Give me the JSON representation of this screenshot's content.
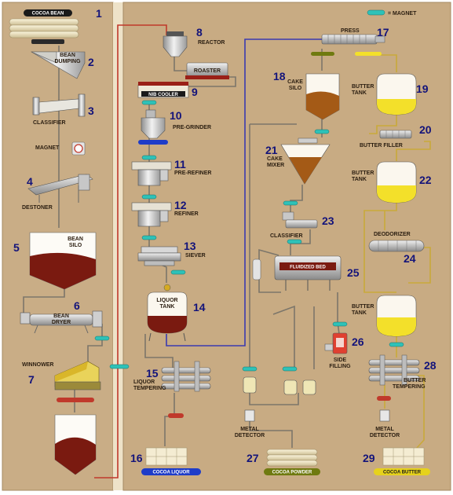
{
  "legend": {
    "magnet": "= MAGNET"
  },
  "numbers": [
    "1",
    "2",
    "3",
    "4",
    "5",
    "6",
    "7",
    "8",
    "9",
    "10",
    "11",
    "12",
    "13",
    "14",
    "15",
    "16",
    "17",
    "18",
    "19",
    "20",
    "21",
    "22",
    "23",
    "24",
    "25",
    "26",
    "27",
    "28",
    "29"
  ],
  "labels": {
    "cocoa_bean": "COCOA BEAN",
    "bean_dumping_1": "BEAN",
    "bean_dumping_2": "DUMPING",
    "classifier_a": "CLASSIFIER",
    "magnet": "MAGNET",
    "destoner": "DESTONER",
    "bean_silo_1": "BEAN",
    "bean_silo_2": "SILO",
    "bean_dryer_1": "BEAN",
    "bean_dryer_2": "DRYER",
    "winnower": "WINNOWER",
    "reactor": "REACTOR",
    "roaster": "ROASTER",
    "nib_cooler": "NIB COOLER",
    "pre_grinder": "PRE-GRINDER",
    "pre_refiner": "PRE-REFINER",
    "refiner": "REFINER",
    "siever": "SIEVER",
    "liquor_tank_1": "LIQUOR",
    "liquor_tank_2": "TANK",
    "liquor_tempering_1": "LIQUOR",
    "liquor_tempering_2": "TEMPERING",
    "cocoa_liquor": "COCOA LIQUOR",
    "press": "PRESS",
    "cake_silo_1": "CAKE",
    "cake_silo_2": "SILO",
    "cake_mixer_1": "CAKE",
    "cake_mixer_2": "MIXER",
    "classifier_b": "CLASSIFIER",
    "fluidized_bed": "FLUIDIZED BED",
    "side_filling_1": "SIDE",
    "side_filling_2": "FILLING",
    "metal_detector_a_1": "METAL",
    "metal_detector_a_2": "DETECTOR",
    "cocoa_powder": "COCOA POWDER",
    "butter_tank_a_1": "BUTTER",
    "butter_tank_a_2": "TANK",
    "butter_filler": "BUTTER FILLER",
    "butter_tank_b_1": "BUTTER",
    "butter_tank_b_2": "TANK",
    "deodorizer": "DEODORIZER",
    "butter_tank_c_1": "BUTTER",
    "butter_tank_c_2": "TANK",
    "butter_tempering_1": "BUTTER",
    "butter_tempering_2": "TEMPERING",
    "metal_detector_b_1": "METAL",
    "metal_detector_b_2": "DETECTOR",
    "cocoa_butter": "COCOA BUTTER"
  },
  "colors": {
    "left_panel": "#c9ad86",
    "main_panel": "#c8ab83",
    "divider": "#eee2c8",
    "magnet": "#2ec2b8",
    "cocoa": "#7a1a10",
    "butter": "#f3e02a",
    "liquor_pill": "#1e3cc8",
    "powder_pill": "#6f7a10",
    "butter_pill": "#e6d21c",
    "line_red": "#c0392b",
    "line_blue": "#3a3ab0",
    "line_gray": "#7c766a",
    "line_yellow": "#c9a93a"
  }
}
